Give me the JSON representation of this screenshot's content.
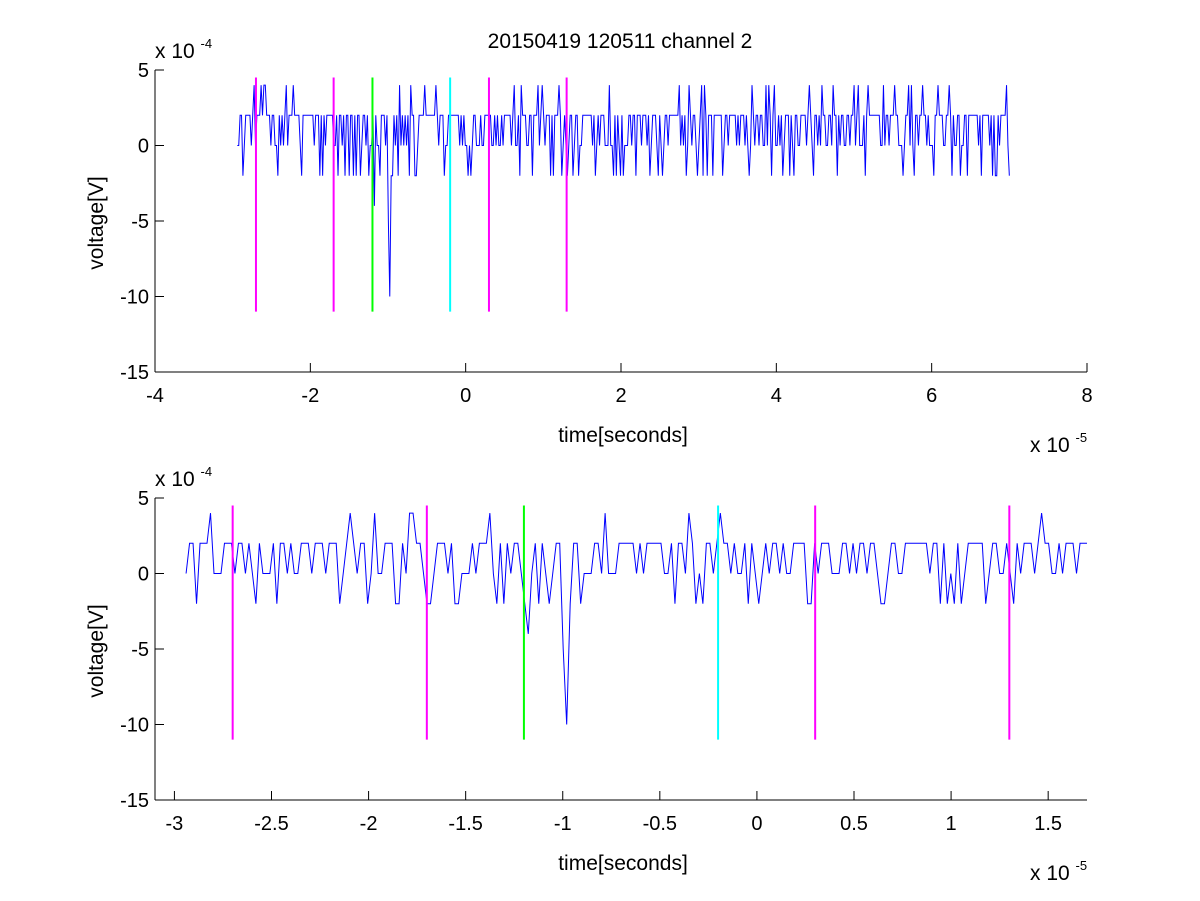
{
  "figure": {
    "title": "20150419 120511 channel 2"
  },
  "chart_data": [
    {
      "type": "line",
      "title": "20150419 120511 channel 2",
      "xlabel": "time[seconds]",
      "ylabel": "voltage[V]",
      "x_scale_label": "x 10",
      "x_scale_exp": "-5",
      "y_scale_label": "x 10",
      "y_scale_exp": "-4",
      "xlim": [
        -4,
        8
      ],
      "ylim": [
        -15,
        5
      ],
      "xticks": [
        -4,
        -2,
        0,
        2,
        4,
        6,
        8
      ],
      "xtick_labels": [
        "-4",
        "-2",
        "0",
        "2",
        "4",
        "6",
        "8"
      ],
      "yticks": [
        5,
        0,
        -5,
        -10,
        -15
      ],
      "ytick_labels": [
        "5",
        "0",
        "-5",
        "-10",
        "-15"
      ],
      "grid": false,
      "trace_color": "#0000ff",
      "trace_x_range": [
        -2.94,
        7.0
      ],
      "trace_baseline": 0,
      "trace_levels": [
        -2,
        0,
        2,
        4
      ],
      "trace_dips": [
        {
          "x": -1.18,
          "y": -4
        },
        {
          "x": -0.98,
          "y": -10
        }
      ],
      "markers": [
        {
          "x": -2.7,
          "color": "#ff00ff",
          "y_top": 4.5,
          "y_bottom": -11
        },
        {
          "x": -1.7,
          "color": "#ff00ff",
          "y_top": 4.5,
          "y_bottom": -11
        },
        {
          "x": -1.2,
          "color": "#00ff00",
          "y_top": 4.5,
          "y_bottom": -11
        },
        {
          "x": -0.2,
          "color": "#00ffff",
          "y_top": 4.5,
          "y_bottom": -11
        },
        {
          "x": 0.3,
          "color": "#ff00ff",
          "y_top": 4.5,
          "y_bottom": -11
        },
        {
          "x": 1.3,
          "color": "#ff00ff",
          "y_top": 4.5,
          "y_bottom": -11
        }
      ]
    },
    {
      "type": "line",
      "title": "",
      "xlabel": "time[seconds]",
      "ylabel": "voltage[V]",
      "x_scale_label": "x 10",
      "x_scale_exp": "-5",
      "y_scale_label": "x 10",
      "y_scale_exp": "-4",
      "xlim": [
        -3.1,
        1.7
      ],
      "ylim": [
        -15,
        5
      ],
      "xticks": [
        -3,
        -2.5,
        -2,
        -1.5,
        -1,
        -0.5,
        0,
        0.5,
        1,
        1.5
      ],
      "xtick_labels": [
        "-3",
        "-2.5",
        "-2",
        "-1.5",
        "-1",
        "-0.5",
        "0",
        "0.5",
        "1",
        "1.5"
      ],
      "yticks": [
        5,
        0,
        -5,
        -10,
        -15
      ],
      "ytick_labels": [
        "5",
        "0",
        "-5",
        "-10",
        "-15"
      ],
      "grid": false,
      "trace_color": "#0000ff",
      "trace_x_range": [
        -2.94,
        1.7
      ],
      "trace_baseline": 0,
      "trace_levels": [
        -2,
        0,
        2,
        4
      ],
      "trace_dips": [
        {
          "x": -1.18,
          "y": -4
        },
        {
          "x": -0.98,
          "y": -10
        }
      ],
      "markers": [
        {
          "x": -2.7,
          "color": "#ff00ff",
          "y_top": 4.5,
          "y_bottom": -11
        },
        {
          "x": -1.7,
          "color": "#ff00ff",
          "y_top": 4.5,
          "y_bottom": -11
        },
        {
          "x": -1.2,
          "color": "#00ff00",
          "y_top": 4.5,
          "y_bottom": -11
        },
        {
          "x": -0.2,
          "color": "#00ffff",
          "y_top": 4.5,
          "y_bottom": -11
        },
        {
          "x": 0.3,
          "color": "#ff00ff",
          "y_top": 4.5,
          "y_bottom": -11
        },
        {
          "x": 1.3,
          "color": "#ff00ff",
          "y_top": 4.5,
          "y_bottom": -11
        }
      ]
    }
  ]
}
